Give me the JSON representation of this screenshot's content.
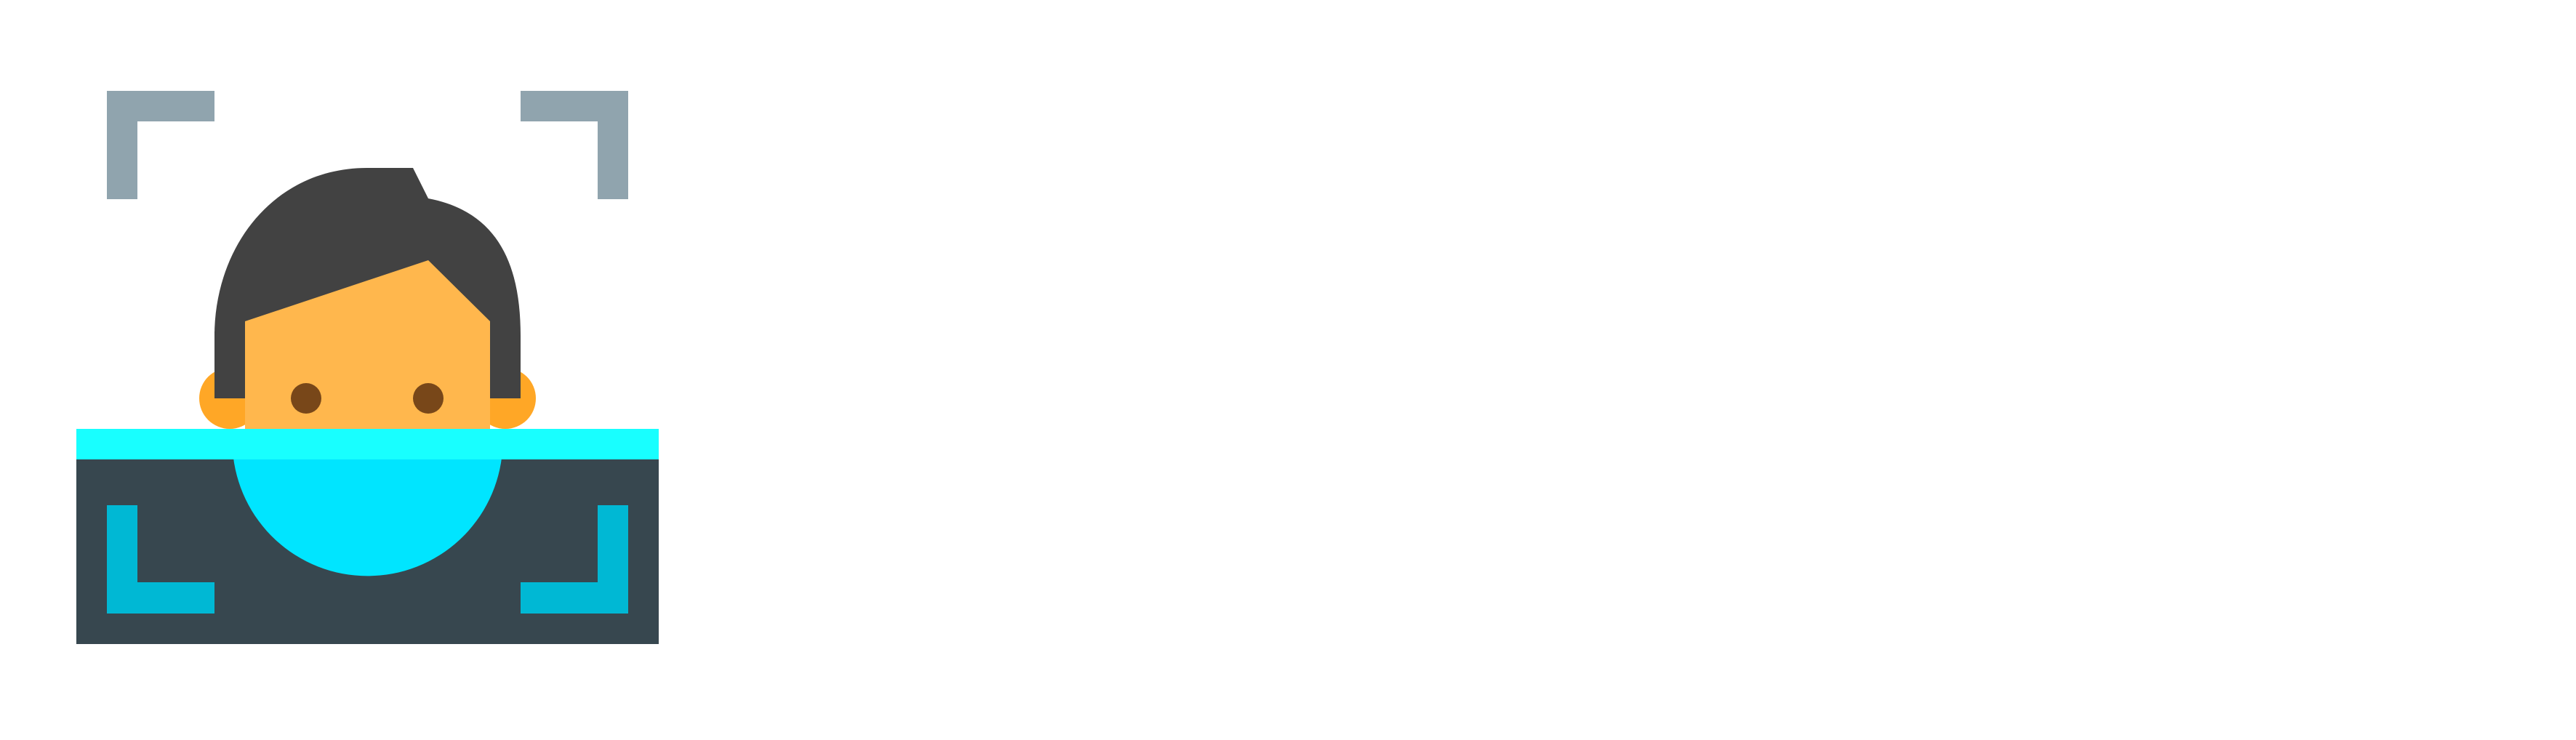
{
  "illustration": {
    "icon_name": "face-scan-icon",
    "colors": {
      "background": "#FFFFFF",
      "frame_corner_top": "#90A4AE",
      "frame_corner_bottom": "#00B8D4",
      "hair": "#424242",
      "skin": "#FFB74D",
      "ear": "#FFA726",
      "eye": "#784719",
      "scan_line": "#18FFFF",
      "scanner_body": "#37474F",
      "scan_light": "#00E5FF"
    }
  }
}
